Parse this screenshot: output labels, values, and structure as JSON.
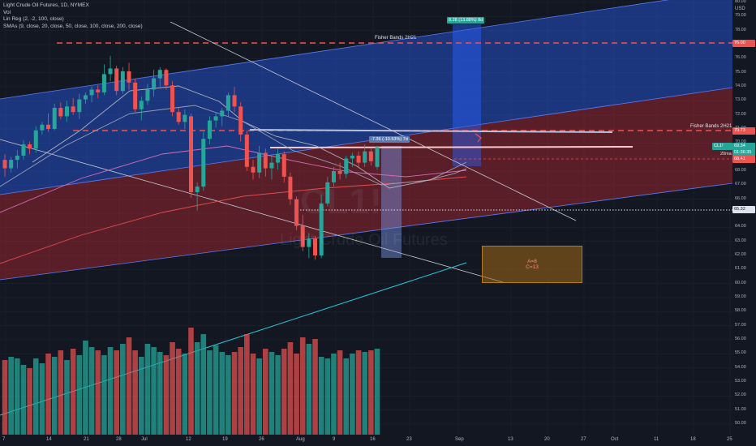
{
  "legend": {
    "symbol_line": "Light Crude Oil Futures, 1D, NYMEX",
    "vol": "Vol",
    "linreg": "Lin Reg (2, -2, 100, close)",
    "smas": "SMAs (9, close, 20, close, 50, close, 100, close, 200, close)"
  },
  "watermark": {
    "ticker": "CL1!",
    "name": "Light Crude Oil Futures"
  },
  "drawings": {
    "fisher_bands_top": "Fisher Bands 2H21",
    "fisher_bands_right": "Fisher Bands 2H21",
    "measure_top": "8.28 (13.88%) 8d",
    "measure_mid": "-7.36 (-10.53%) 7d",
    "label_20ma": "20ma",
    "box_line1": "A=8",
    "box_line2": "C=13"
  },
  "price_tags": {
    "usd": "USD",
    "fisher_top": "76.00",
    "fisher_mid": "70.73",
    "symbol": "CL1!",
    "last_price": "69.34",
    "countdown": "01:36:35",
    "ma_value": "68.41",
    "dotted_level": "65.32"
  },
  "colors": {
    "bull": "#26a69a",
    "bear": "#ef5350",
    "blue_band": "#2962ff",
    "red_band": "#b22833",
    "background": "#131722"
  },
  "chart_data": {
    "type": "candlestick",
    "price_axis_ticks": [
      "80.00",
      "79.00",
      "78.00",
      "77.00",
      "76.00",
      "75.00",
      "74.00",
      "73.00",
      "72.00",
      "71.00",
      "70.00",
      "69.00",
      "68.00",
      "67.00",
      "66.00",
      "65.00",
      "64.00",
      "63.00",
      "62.00",
      "61.00",
      "60.00",
      "59.00",
      "58.00",
      "57.00",
      "56.00",
      "55.00",
      "54.00",
      "53.00",
      "52.00",
      "51.00",
      "50.00"
    ],
    "time_axis_ticks": [
      "7",
      "14",
      "21",
      "28",
      "Jul",
      "12",
      "19",
      "26",
      "Aug",
      "9",
      "16",
      "23",
      "Sep",
      "13",
      "20",
      "27",
      "Oct",
      "11",
      "18",
      "25"
    ],
    "ohlc": [
      [
        68.8,
        69.2,
        67.6,
        68.2
      ],
      [
        68.2,
        69.0,
        67.9,
        68.8
      ],
      [
        68.8,
        69.5,
        68.2,
        69.1
      ],
      [
        69.1,
        70.2,
        68.8,
        69.9
      ],
      [
        69.9,
        70.1,
        69.2,
        69.6
      ],
      [
        69.6,
        71.2,
        69.3,
        70.9
      ],
      [
        70.9,
        71.5,
        70.6,
        71.3
      ],
      [
        71.3,
        72.1,
        70.8,
        71.0
      ],
      [
        71.0,
        72.8,
        70.9,
        72.5
      ],
      [
        72.5,
        72.9,
        71.7,
        71.9
      ],
      [
        71.9,
        73.0,
        71.5,
        72.6
      ],
      [
        72.6,
        73.2,
        72.0,
        72.2
      ],
      [
        72.2,
        73.5,
        71.7,
        73.1
      ],
      [
        73.1,
        73.6,
        72.8,
        73.4
      ],
      [
        73.4,
        74.0,
        72.9,
        73.8
      ],
      [
        73.8,
        74.1,
        73.2,
        73.6
      ],
      [
        73.6,
        75.6,
        73.4,
        74.9
      ],
      [
        74.9,
        76.2,
        74.4,
        75.3
      ],
      [
        75.3,
        75.5,
        73.4,
        73.7
      ],
      [
        73.7,
        75.4,
        73.5,
        75.1
      ],
      [
        75.1,
        75.7,
        73.8,
        74.3
      ],
      [
        74.3,
        74.6,
        72.2,
        72.4
      ],
      [
        72.4,
        73.3,
        71.6,
        73.0
      ],
      [
        73.0,
        74.2,
        72.7,
        73.8
      ],
      [
        73.8,
        75.2,
        73.3,
        74.6
      ],
      [
        74.6,
        75.4,
        74.0,
        75.2
      ],
      [
        75.2,
        75.3,
        73.8,
        74.1
      ],
      [
        74.1,
        74.4,
        71.9,
        72.2
      ],
      [
        72.2,
        72.5,
        71.3,
        71.5
      ],
      [
        71.5,
        72.4,
        71.0,
        72.0
      ],
      [
        71.9,
        72.1,
        66.1,
        66.5
      ],
      [
        66.5,
        67.2,
        65.2,
        66.9
      ],
      [
        66.9,
        70.8,
        66.6,
        70.3
      ],
      [
        70.3,
        71.9,
        69.9,
        71.6
      ],
      [
        71.6,
        72.2,
        71.1,
        71.9
      ],
      [
        71.9,
        72.5,
        71.2,
        72.3
      ],
      [
        72.3,
        73.6,
        71.9,
        73.4
      ],
      [
        73.4,
        74.0,
        72.2,
        72.6
      ],
      [
        72.6,
        72.9,
        70.1,
        70.6
      ],
      [
        70.6,
        70.9,
        68.0,
        68.3
      ],
      [
        68.3,
        68.8,
        67.4,
        67.9
      ],
      [
        67.9,
        69.8,
        67.5,
        69.3
      ],
      [
        69.3,
        69.6,
        67.6,
        68.2
      ],
      [
        68.2,
        69.1,
        67.4,
        68.6
      ],
      [
        68.6,
        69.6,
        68.1,
        69.2
      ],
      [
        69.2,
        69.4,
        67.2,
        67.6
      ],
      [
        67.6,
        67.9,
        65.6,
        66.0
      ],
      [
        66.0,
        66.2,
        63.8,
        64.1
      ],
      [
        64.1,
        64.9,
        62.3,
        62.6
      ],
      [
        62.6,
        63.6,
        61.8,
        63.2
      ],
      [
        63.2,
        63.4,
        61.7,
        62.0
      ],
      [
        62.0,
        66.3,
        61.8,
        65.7
      ],
      [
        65.7,
        67.6,
        65.5,
        67.2
      ],
      [
        67.2,
        68.3,
        66.9,
        68.0
      ],
      [
        68.0,
        68.6,
        67.4,
        67.8
      ],
      [
        67.8,
        69.1,
        67.5,
        68.9
      ],
      [
        68.9,
        69.3,
        68.3,
        69.1
      ],
      [
        69.1,
        69.4,
        68.3,
        68.6
      ],
      [
        68.6,
        69.9,
        68.3,
        69.4
      ],
      [
        69.4,
        69.6,
        68.4,
        68.7
      ],
      [
        68.3,
        69.8,
        68.1,
        69.7
      ]
    ],
    "volume": [
      46,
      48,
      47,
      43,
      41,
      47,
      44,
      50,
      48,
      52,
      46,
      53,
      49,
      58,
      54,
      52,
      49,
      54,
      52,
      56,
      60,
      52,
      48,
      56,
      54,
      51,
      49,
      57,
      53,
      50,
      66,
      57,
      62,
      52,
      55,
      51,
      49,
      51,
      54,
      62,
      50,
      47,
      53,
      51,
      49,
      53,
      57,
      50,
      60,
      56,
      59,
      48,
      47,
      50,
      52,
      47,
      50,
      52,
      51,
      52,
      53
    ]
  }
}
